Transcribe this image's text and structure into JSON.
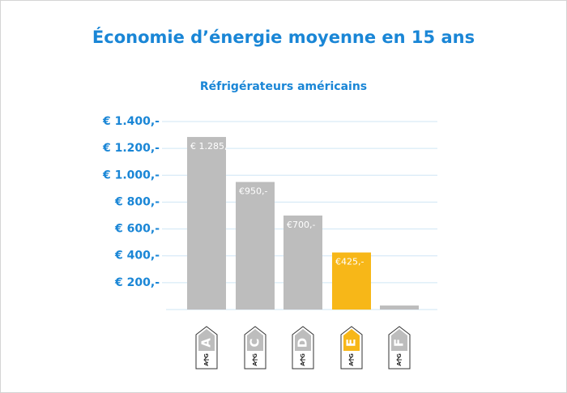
{
  "chart_data": {
    "type": "bar",
    "title": "Économie d’énergie moyenne en 15 ans",
    "subtitle": "Réfrigérateurs américains",
    "categories": [
      "A",
      "C",
      "D",
      "E",
      "F"
    ],
    "icon_scale": [
      "A",
      "G"
    ],
    "values": [
      1285,
      950,
      700,
      425,
      30
    ],
    "value_labels": [
      "€ 1.285,-",
      "€950,-",
      "€700,-",
      "€425,-",
      null
    ],
    "colors": [
      "#bdbdbd",
      "#bdbdbd",
      "#bdbdbd",
      "#f7b718",
      "#bdbdbd"
    ],
    "ylim": [
      0,
      1400
    ],
    "yticks": [
      {
        "value": 200,
        "label": "€ 200,-"
      },
      {
        "value": 400,
        "label": "€ 400,-"
      },
      {
        "value": 600,
        "label": "€ 600,-"
      },
      {
        "value": 800,
        "label": "€ 800,-"
      },
      {
        "value": 1000,
        "label": "€ 1.000,-"
      },
      {
        "value": 1200,
        "label": "€ 1.200,-"
      },
      {
        "value": 1400,
        "label": "€ 1.400,-"
      }
    ],
    "grid": true
  }
}
